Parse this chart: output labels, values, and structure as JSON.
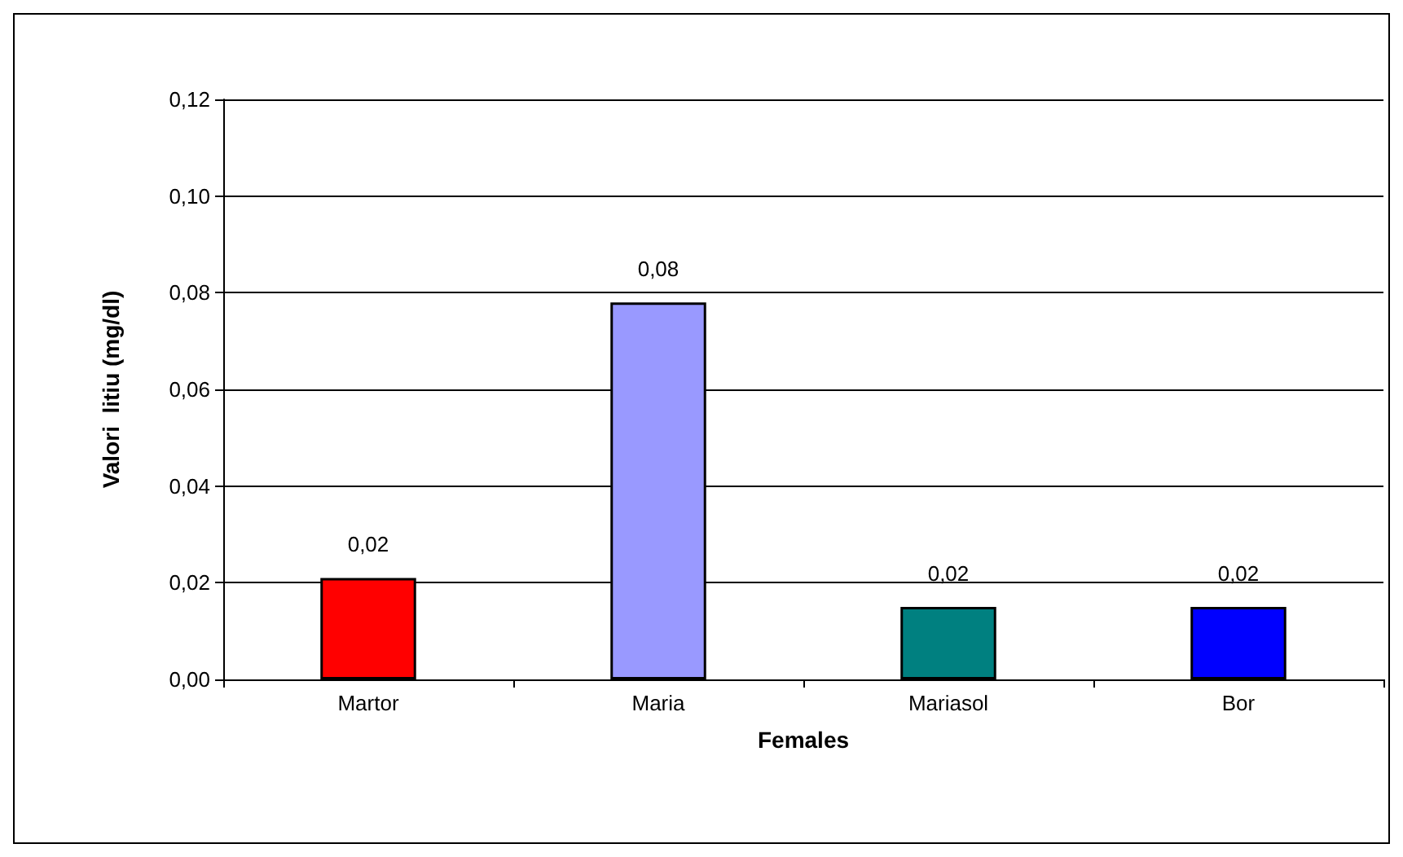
{
  "chart_data": {
    "type": "bar",
    "xlabel": "Females",
    "ylabel": "Valori  litiu (mg/dl)",
    "categories": [
      "Martor",
      "Maria",
      "Mariasol",
      "Bor"
    ],
    "values": [
      0.021,
      0.078,
      0.015,
      0.015
    ],
    "colors": [
      "#ff0000",
      "#9999ff",
      "#008080",
      "#0000ff"
    ],
    "value_labels": [
      "0,02",
      "0,08",
      "0,02",
      "0,02"
    ],
    "ylim": [
      0,
      0.12
    ],
    "yticks": [
      {
        "value": 0,
        "label": "0,00"
      },
      {
        "value": 0.02,
        "label": "0,02"
      },
      {
        "value": 0.04,
        "label": "0,04"
      },
      {
        "value": 0.06,
        "label": "0,06"
      },
      {
        "value": 0.08,
        "label": "0,08"
      },
      {
        "value": 0.1,
        "label": "0,10"
      },
      {
        "value": 0.12,
        "label": "0,12"
      }
    ],
    "grid": "y"
  }
}
